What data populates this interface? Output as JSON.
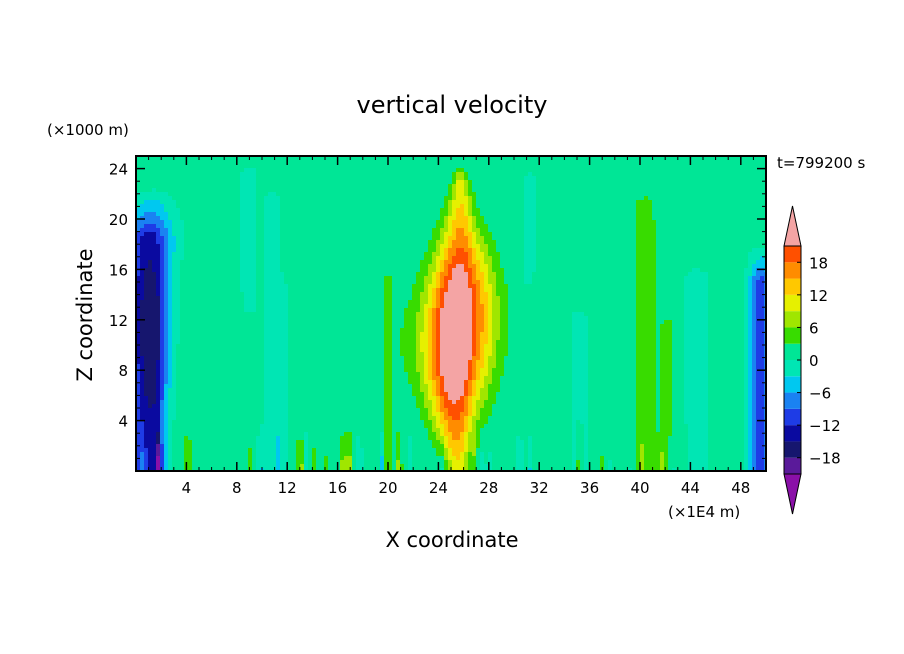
{
  "chart_data": {
    "type": "heatmap",
    "title": "vertical velocity",
    "xlabel": "X coordinate",
    "ylabel": "Z coordinate",
    "x_unit": "(×1E4 m)",
    "y_unit": "(×1000 m)",
    "time_label": "t=799200 s",
    "xlim": [
      0,
      50
    ],
    "ylim": [
      0,
      25
    ],
    "x_ticks": [
      4,
      8,
      12,
      16,
      20,
      24,
      28,
      32,
      36,
      40,
      44,
      48
    ],
    "x_tick_labels": [
      "4",
      "8",
      "12",
      "16",
      "20",
      "24",
      "28",
      "32",
      "36",
      "40",
      "44",
      "48"
    ],
    "y_ticks": [
      4,
      8,
      12,
      16,
      20,
      24
    ],
    "y_tick_labels": [
      "4",
      "8",
      "12",
      "16",
      "20",
      "24"
    ],
    "colorbar": {
      "levels": [
        -21,
        -18,
        -15,
        -12,
        -9,
        -6,
        -3,
        0,
        3,
        6,
        9,
        12,
        15,
        18,
        21
      ],
      "tick_values": [
        -18,
        -12,
        -6,
        0,
        6,
        12,
        18
      ],
      "tick_labels": [
        "−18",
        "−12",
        "−6",
        "0",
        "6",
        "12",
        "18"
      ],
      "colors": [
        "#5a1a9a",
        "#16166e",
        "#0a0aa0",
        "#1e3ce6",
        "#1a82f2",
        "#00c8f0",
        "#00e6b4",
        "#00e696",
        "#38dc00",
        "#a0e600",
        "#e6f000",
        "#ffc800",
        "#ff8c00",
        "#ff5000",
        "#e60000"
      ],
      "under_color": "#8a10a8",
      "over_color": "#f4a4a4",
      "extend": "both"
    },
    "features": [
      {
        "x_center": 25.6,
        "z_top": 23.5,
        "peak": 21,
        "description_level": "updraft"
      },
      {
        "x_center": 1.0,
        "z_top": 22.5,
        "peak": -18,
        "description_level": "downdraft"
      },
      {
        "x_center": 49.6,
        "z_top": 18,
        "peak": -12,
        "description_level": "downdraft"
      }
    ]
  }
}
